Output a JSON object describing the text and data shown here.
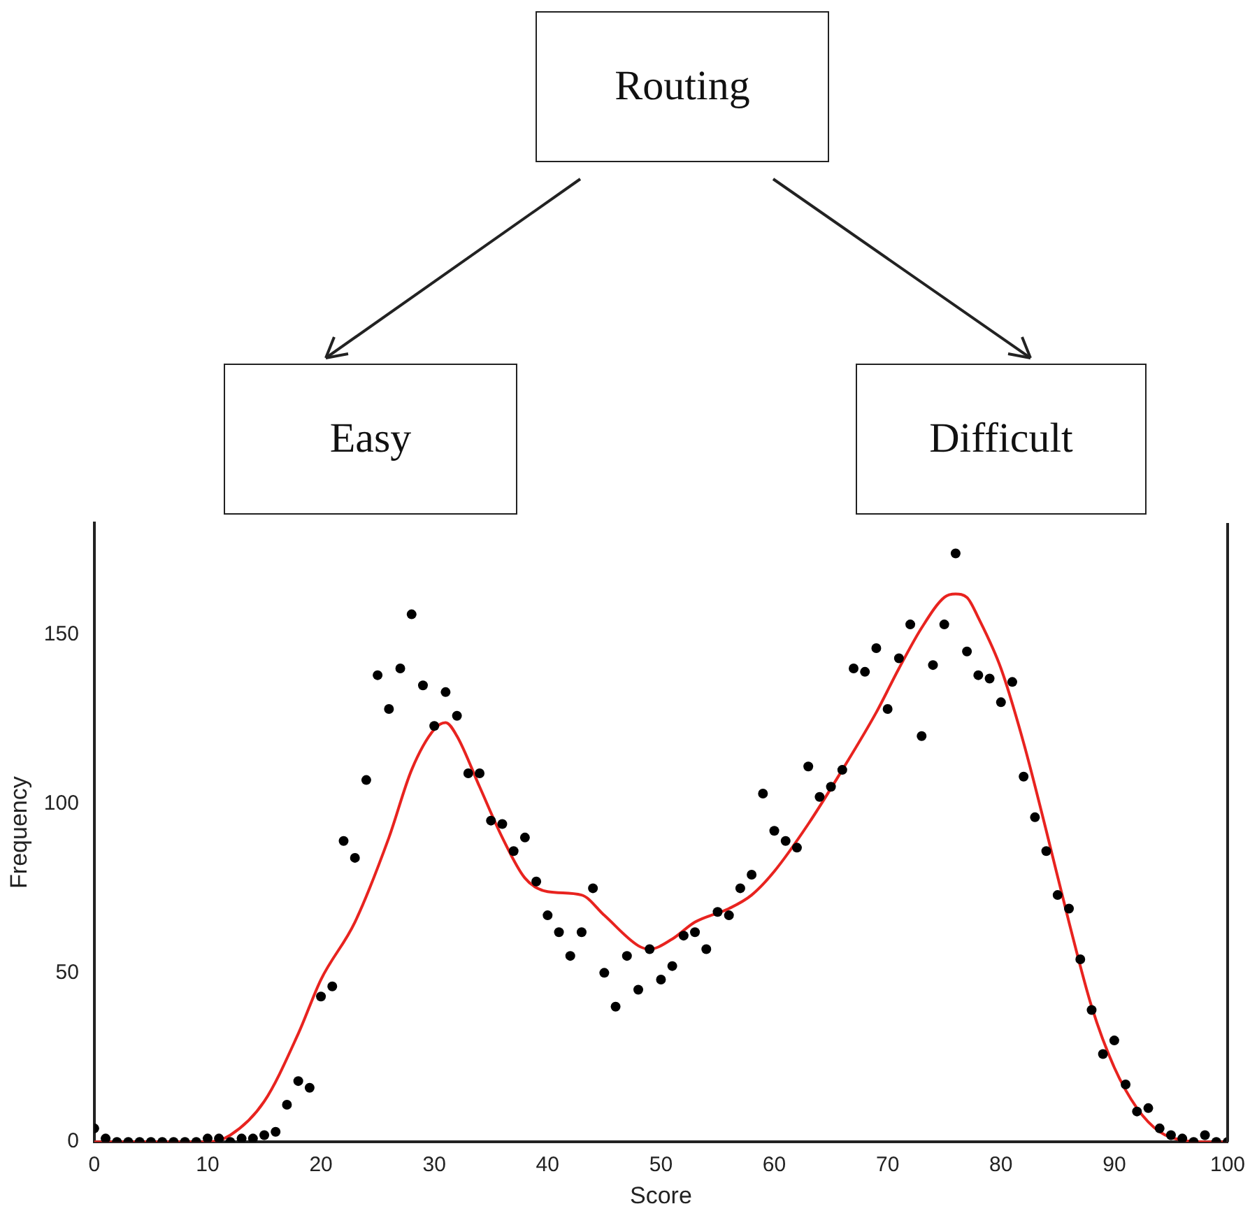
{
  "chart_data": {
    "type": "scatter",
    "xlabel": "Score",
    "ylabel": "Frequency",
    "annotations": [
      "Routing",
      "Easy",
      "Difficult"
    ],
    "xlim": [
      0,
      100
    ],
    "xticks": [
      0,
      10,
      20,
      30,
      40,
      50,
      60,
      70,
      80,
      90,
      100
    ],
    "ylim": [
      0,
      183
    ],
    "yticks": [
      0,
      50,
      100,
      150
    ],
    "grid": false,
    "legend": false,
    "series": [
      {
        "color": "#000000",
        "marker": "circle",
        "x": [
          0,
          1,
          2,
          3,
          4,
          5,
          6,
          7,
          8,
          9,
          10,
          11,
          12,
          13,
          14,
          15,
          16,
          17,
          18,
          19,
          20,
          21,
          22,
          23,
          24,
          25,
          26,
          27,
          28,
          29,
          30,
          31,
          32,
          33,
          34,
          35,
          36,
          37,
          38,
          39,
          40,
          41,
          42,
          43,
          44,
          45,
          46,
          47,
          48,
          49,
          50,
          51,
          52,
          53,
          54,
          55,
          56,
          57,
          58,
          59,
          60,
          61,
          62,
          63,
          64,
          65,
          66,
          67,
          68,
          69,
          70,
          71,
          72,
          73,
          74,
          75,
          76,
          77,
          78,
          79,
          80,
          81,
          82,
          83,
          84,
          85,
          86,
          87,
          88,
          89,
          90,
          91,
          92,
          93,
          94,
          95,
          96,
          97,
          98,
          99,
          100
        ],
        "values": [
          4,
          1,
          0,
          0,
          0,
          0,
          0,
          0,
          0,
          0,
          1,
          1,
          0,
          1,
          1,
          2,
          3,
          11,
          18,
          16,
          43,
          46,
          89,
          84,
          107,
          138,
          128,
          140,
          156,
          135,
          123,
          133,
          126,
          109,
          109,
          95,
          94,
          86,
          90,
          77,
          67,
          62,
          55,
          62,
          75,
          50,
          40,
          55,
          45,
          57,
          48,
          52,
          61,
          62,
          57,
          68,
          67,
          75,
          79,
          103,
          92,
          89,
          87,
          111,
          102,
          105,
          110,
          140,
          139,
          146,
          128,
          143,
          153,
          120,
          141,
          153,
          174,
          145,
          138,
          137,
          130,
          136,
          108,
          96,
          86,
          73,
          69,
          54,
          39,
          26,
          30,
          17,
          9,
          10,
          4,
          2,
          1,
          0,
          2,
          0,
          0
        ]
      },
      {
        "type": "line",
        "color": "#e8231f",
        "marker": "none",
        "line_style": "solid",
        "x": [
          0,
          10,
          12,
          15,
          18,
          20,
          23,
          26,
          28,
          30,
          31,
          32,
          34,
          36,
          38,
          40,
          43,
          45,
          48,
          49,
          51,
          53,
          56,
          58,
          60,
          63,
          66,
          69,
          71,
          73,
          75,
          76,
          77,
          78,
          80,
          82,
          84,
          86,
          88,
          90,
          92,
          94,
          96,
          98,
          100
        ],
        "values": [
          0,
          0,
          2,
          12,
          32,
          48,
          65,
          90,
          110,
          122,
          124,
          120,
          105,
          90,
          78,
          74,
          73,
          67,
          58,
          57,
          60,
          65,
          69,
          73,
          80,
          94,
          110,
          127,
          140,
          152,
          161,
          162,
          161,
          155,
          140,
          118,
          92,
          65,
          40,
          22,
          10,
          3,
          0.5,
          0,
          0
        ]
      }
    ]
  }
}
